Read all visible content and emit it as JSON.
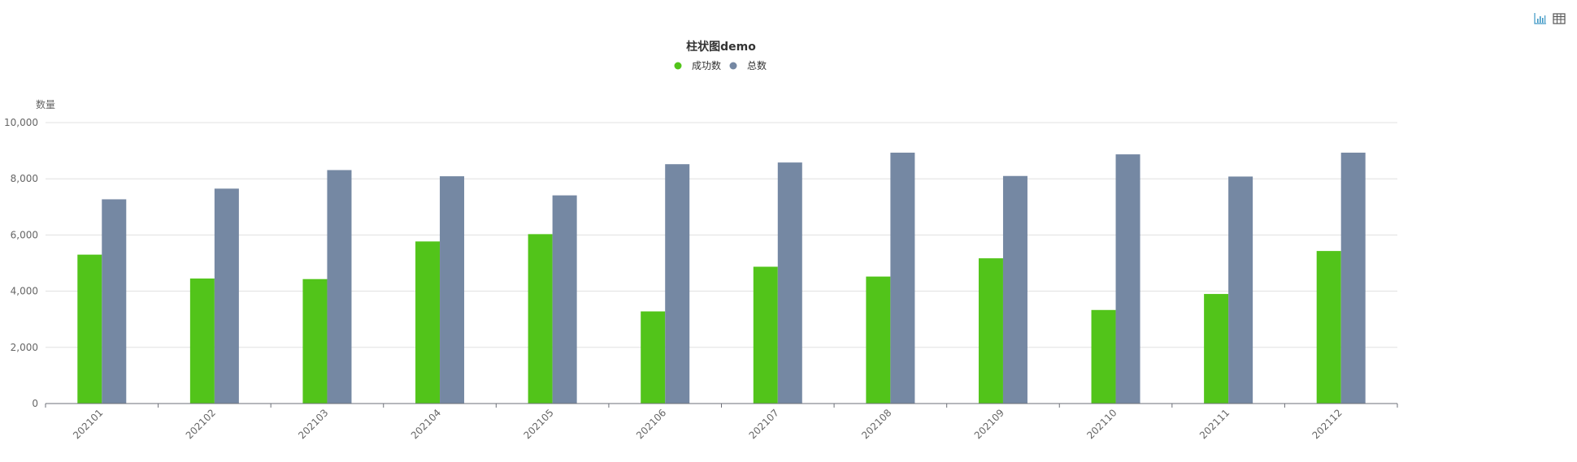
{
  "toolbox": {
    "bar_icon": "bar-chart-icon",
    "table_icon": "data-table-icon"
  },
  "chart_data": {
    "type": "bar",
    "title": "柱状图demo",
    "xlabel": "",
    "ylabel": "数量",
    "categories": [
      "202101",
      "202102",
      "202103",
      "202104",
      "202105",
      "202106",
      "202107",
      "202108",
      "202109",
      "202110",
      "202111",
      "202112"
    ],
    "series": [
      {
        "name": "成功数",
        "color": "#52c41a",
        "values": [
          5300,
          4450,
          4430,
          5770,
          6030,
          3280,
          4870,
          4520,
          5170,
          3330,
          3900,
          5430
        ]
      },
      {
        "name": "总数",
        "color": "#7588a3",
        "values": [
          7270,
          7650,
          8310,
          8090,
          7410,
          8520,
          8580,
          8930,
          8100,
          8870,
          8080,
          8930
        ]
      }
    ],
    "ylim": [
      0,
      10000
    ],
    "yticks": [
      "0",
      "2,000",
      "4,000",
      "6,000",
      "8,000",
      "10,000"
    ],
    "grid": true,
    "legend_position": "top-center"
  }
}
